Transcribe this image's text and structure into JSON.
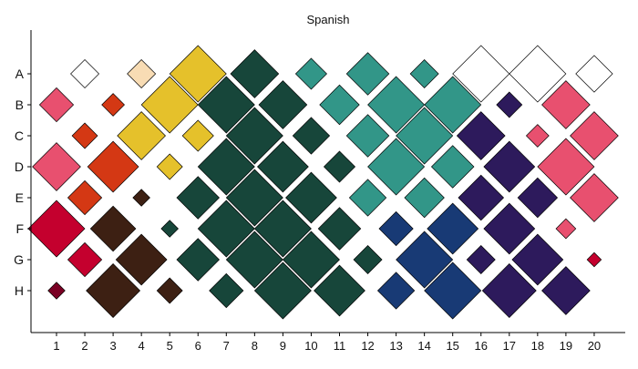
{
  "chart_data": {
    "type": "scatter",
    "title": "Spanish",
    "xlabel": "",
    "ylabel": "",
    "x_categories": [
      "1",
      "2",
      "3",
      "4",
      "5",
      "6",
      "7",
      "8",
      "9",
      "10",
      "11",
      "12",
      "13",
      "14",
      "15",
      "16",
      "17",
      "18",
      "19",
      "20"
    ],
    "y_categories": [
      "A",
      "B",
      "C",
      "D",
      "E",
      "F",
      "G",
      "H"
    ],
    "grid": false,
    "legend": "none",
    "points": [
      {
        "x": "2",
        "y": "A",
        "size": 0.5,
        "color": "#ffffff"
      },
      {
        "x": "4",
        "y": "A",
        "size": 0.5,
        "color": "#f8dcb4"
      },
      {
        "x": "6",
        "y": "A",
        "size": 1.0,
        "color": "#e5c12b"
      },
      {
        "x": "8",
        "y": "A",
        "size": 0.85,
        "color": "#17463a"
      },
      {
        "x": "10",
        "y": "A",
        "size": 0.55,
        "color": "#329688"
      },
      {
        "x": "12",
        "y": "A",
        "size": 0.75,
        "color": "#329688"
      },
      {
        "x": "14",
        "y": "A",
        "size": 0.5,
        "color": "#329688"
      },
      {
        "x": "16",
        "y": "A",
        "size": 1.0,
        "color": "#ffffff"
      },
      {
        "x": "18",
        "y": "A",
        "size": 1.0,
        "color": "#ffffff"
      },
      {
        "x": "20",
        "y": "A",
        "size": 0.65,
        "color": "#ffffff"
      },
      {
        "x": "1",
        "y": "B",
        "size": 0.6,
        "color": "#e8506f"
      },
      {
        "x": "3",
        "y": "B",
        "size": 0.4,
        "color": "#d43814"
      },
      {
        "x": "5",
        "y": "B",
        "size": 1.0,
        "color": "#e5c12b"
      },
      {
        "x": "7",
        "y": "B",
        "size": 1.0,
        "color": "#17463a"
      },
      {
        "x": "9",
        "y": "B",
        "size": 0.85,
        "color": "#17463a"
      },
      {
        "x": "11",
        "y": "B",
        "size": 0.7,
        "color": "#329688"
      },
      {
        "x": "13",
        "y": "B",
        "size": 1.0,
        "color": "#329688"
      },
      {
        "x": "15",
        "y": "B",
        "size": 1.0,
        "color": "#329688"
      },
      {
        "x": "17",
        "y": "B",
        "size": 0.45,
        "color": "#2d1a5c"
      },
      {
        "x": "19",
        "y": "B",
        "size": 0.85,
        "color": "#e8506f"
      },
      {
        "x": "2",
        "y": "C",
        "size": 0.45,
        "color": "#d43814"
      },
      {
        "x": "4",
        "y": "C",
        "size": 0.85,
        "color": "#e5c12b"
      },
      {
        "x": "6",
        "y": "C",
        "size": 0.55,
        "color": "#e5c12b"
      },
      {
        "x": "8",
        "y": "C",
        "size": 1.0,
        "color": "#17463a"
      },
      {
        "x": "10",
        "y": "C",
        "size": 0.65,
        "color": "#17463a"
      },
      {
        "x": "12",
        "y": "C",
        "size": 0.75,
        "color": "#329688"
      },
      {
        "x": "14",
        "y": "C",
        "size": 1.0,
        "color": "#329688"
      },
      {
        "x": "16",
        "y": "C",
        "size": 0.85,
        "color": "#2d1a5c"
      },
      {
        "x": "18",
        "y": "C",
        "size": 0.4,
        "color": "#e8506f"
      },
      {
        "x": "20",
        "y": "C",
        "size": 0.85,
        "color": "#e8506f"
      },
      {
        "x": "1",
        "y": "D",
        "size": 0.85,
        "color": "#e8506f"
      },
      {
        "x": "3",
        "y": "D",
        "size": 0.9,
        "color": "#d43814"
      },
      {
        "x": "5",
        "y": "D",
        "size": 0.45,
        "color": "#e5c12b"
      },
      {
        "x": "7",
        "y": "D",
        "size": 1.0,
        "color": "#17463a"
      },
      {
        "x": "9",
        "y": "D",
        "size": 0.9,
        "color": "#17463a"
      },
      {
        "x": "11",
        "y": "D",
        "size": 0.55,
        "color": "#17463a"
      },
      {
        "x": "13",
        "y": "D",
        "size": 1.0,
        "color": "#329688"
      },
      {
        "x": "15",
        "y": "D",
        "size": 0.75,
        "color": "#329688"
      },
      {
        "x": "17",
        "y": "D",
        "size": 0.9,
        "color": "#2d1a5c"
      },
      {
        "x": "19",
        "y": "D",
        "size": 1.0,
        "color": "#e8506f"
      },
      {
        "x": "2",
        "y": "E",
        "size": 0.6,
        "color": "#d43814"
      },
      {
        "x": "4",
        "y": "E",
        "size": 0.3,
        "color": "#3d2013"
      },
      {
        "x": "6",
        "y": "E",
        "size": 0.75,
        "color": "#17463a"
      },
      {
        "x": "8",
        "y": "E",
        "size": 1.0,
        "color": "#17463a"
      },
      {
        "x": "10",
        "y": "E",
        "size": 0.9,
        "color": "#17463a"
      },
      {
        "x": "12",
        "y": "E",
        "size": 0.65,
        "color": "#329688"
      },
      {
        "x": "14",
        "y": "E",
        "size": 0.7,
        "color": "#329688"
      },
      {
        "x": "16",
        "y": "E",
        "size": 0.8,
        "color": "#2d1a5c"
      },
      {
        "x": "18",
        "y": "E",
        "size": 0.7,
        "color": "#2d1a5c"
      },
      {
        "x": "20",
        "y": "E",
        "size": 0.85,
        "color": "#e8506f"
      },
      {
        "x": "1",
        "y": "F",
        "size": 1.0,
        "color": "#c4002e"
      },
      {
        "x": "3",
        "y": "F",
        "size": 0.8,
        "color": "#3d2013"
      },
      {
        "x": "5",
        "y": "F",
        "size": 0.3,
        "color": "#17463a"
      },
      {
        "x": "7",
        "y": "F",
        "size": 1.0,
        "color": "#17463a"
      },
      {
        "x": "9",
        "y": "F",
        "size": 1.0,
        "color": "#17463a"
      },
      {
        "x": "11",
        "y": "F",
        "size": 0.75,
        "color": "#17463a"
      },
      {
        "x": "13",
        "y": "F",
        "size": 0.6,
        "color": "#183a75"
      },
      {
        "x": "15",
        "y": "F",
        "size": 0.9,
        "color": "#183a75"
      },
      {
        "x": "17",
        "y": "F",
        "size": 0.9,
        "color": "#2d1a5c"
      },
      {
        "x": "19",
        "y": "F",
        "size": 0.35,
        "color": "#e8506f"
      },
      {
        "x": "2",
        "y": "G",
        "size": 0.6,
        "color": "#c4002e"
      },
      {
        "x": "4",
        "y": "G",
        "size": 0.9,
        "color": "#3d2013"
      },
      {
        "x": "6",
        "y": "G",
        "size": 0.75,
        "color": "#17463a"
      },
      {
        "x": "8",
        "y": "G",
        "size": 1.0,
        "color": "#17463a"
      },
      {
        "x": "10",
        "y": "G",
        "size": 1.0,
        "color": "#17463a"
      },
      {
        "x": "12",
        "y": "G",
        "size": 0.5,
        "color": "#17463a"
      },
      {
        "x": "14",
        "y": "G",
        "size": 1.0,
        "color": "#183a75"
      },
      {
        "x": "16",
        "y": "G",
        "size": 0.5,
        "color": "#2d1a5c"
      },
      {
        "x": "18",
        "y": "G",
        "size": 0.9,
        "color": "#2d1a5c"
      },
      {
        "x": "20",
        "y": "G",
        "size": 0.25,
        "color": "#c4002e"
      },
      {
        "x": "1",
        "y": "H",
        "size": 0.3,
        "color": "#7a0024"
      },
      {
        "x": "3",
        "y": "H",
        "size": 0.95,
        "color": "#3d2013"
      },
      {
        "x": "5",
        "y": "H",
        "size": 0.45,
        "color": "#3d2013"
      },
      {
        "x": "7",
        "y": "H",
        "size": 0.6,
        "color": "#17463a"
      },
      {
        "x": "9",
        "y": "H",
        "size": 1.0,
        "color": "#17463a"
      },
      {
        "x": "11",
        "y": "H",
        "size": 0.9,
        "color": "#17463a"
      },
      {
        "x": "13",
        "y": "H",
        "size": 0.65,
        "color": "#183a75"
      },
      {
        "x": "15",
        "y": "H",
        "size": 1.0,
        "color": "#183a75"
      },
      {
        "x": "17",
        "y": "H",
        "size": 0.95,
        "color": "#2d1a5c"
      },
      {
        "x": "19",
        "y": "H",
        "size": 0.85,
        "color": "#2d1a5c"
      }
    ]
  }
}
